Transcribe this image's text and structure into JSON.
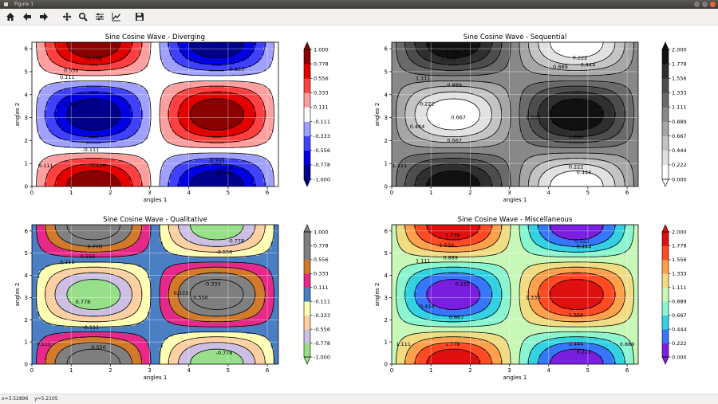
{
  "window": {
    "title": "Figure 1"
  },
  "toolbar": [
    {
      "name": "home-button",
      "icon": "home-icon"
    },
    {
      "name": "back-button",
      "icon": "arrow-left-icon"
    },
    {
      "name": "forward-button",
      "icon": "arrow-right-icon"
    },
    {
      "name": "pan-button",
      "icon": "move-icon"
    },
    {
      "name": "zoom-button",
      "icon": "magnifier-icon"
    },
    {
      "name": "subplots-button",
      "icon": "sliders-icon"
    },
    {
      "name": "axes-button",
      "icon": "chart-line-icon"
    },
    {
      "name": "save-button",
      "icon": "floppy-icon"
    }
  ],
  "status": {
    "x": "x=3.52896",
    "y": "y=5.2105"
  },
  "chart_data": [
    {
      "type": "contour",
      "title": "Sine Cosine Wave - Diverging",
      "xlabel": "angles 1",
      "ylabel": "angles 2",
      "function": "sin(x)*cos(y)",
      "xlim": [
        0,
        6.283
      ],
      "ylim": [
        0,
        6.283
      ],
      "xticks": [
        0,
        1,
        2,
        3,
        4,
        5,
        6
      ],
      "yticks": [
        0,
        1,
        2,
        3,
        4,
        5,
        6
      ],
      "levels": [
        -1.0,
        -0.778,
        -0.556,
        -0.333,
        -0.111,
        0.111,
        0.333,
        0.556,
        0.778,
        1.0
      ],
      "colorbar_labels": [
        "1.000",
        "0.778",
        "0.556",
        "0.333",
        "0.111",
        "-0.111",
        "-0.333",
        "-0.556",
        "-0.778",
        "-1.000"
      ],
      "colors": [
        "#00008b",
        "#0000ff",
        "#8080ff",
        "#ffffff",
        "#ff8080",
        "#ff0000",
        "#8b0000"
      ],
      "contour_labels": [
        "0.778",
        "0.556",
        "0.111",
        "-0.333",
        "-0.111",
        "0.333",
        "0.111",
        "0.556",
        "-0.333",
        "-0.556",
        "-0.778"
      ],
      "grid": true
    },
    {
      "type": "contour",
      "title": "Sine Cosine Wave - Sequential",
      "xlabel": "angles 1",
      "ylabel": "angles 2",
      "function": "sin(x)*cos(y)+1",
      "xlim": [
        0,
        6.283
      ],
      "ylim": [
        0,
        6.283
      ],
      "xticks": [
        0,
        1,
        2,
        3,
        4,
        5,
        6
      ],
      "yticks": [
        0,
        1,
        2,
        3,
        4,
        5,
        6
      ],
      "levels": [
        0,
        0.222,
        0.444,
        0.667,
        0.889,
        1.111,
        1.333,
        1.556,
        1.778,
        2.0
      ],
      "colorbar_labels": [
        "2.000",
        "1.778",
        "1.556",
        "1.333",
        "1.111",
        "0.889",
        "0.667",
        "0.444",
        "0.222",
        "0.000"
      ],
      "colors": [
        "#ffffff",
        "#111111"
      ],
      "contour_labels": [
        "1.778",
        "1.556",
        "0.889",
        "0.222",
        "0.444",
        "1.111",
        "0.667",
        "0.222",
        "0.444",
        "1.333",
        "1.556",
        "0.889",
        "0.667",
        "1.111",
        "0.222",
        "0.444"
      ],
      "grid": true
    },
    {
      "type": "contour",
      "title": "Sine Cosine Wave - Qualitative",
      "xlabel": "angles 1",
      "ylabel": "angles 2",
      "function": "sin(x)*cos(y)",
      "xlim": [
        0,
        6.283
      ],
      "ylim": [
        0,
        6.283
      ],
      "xticks": [
        0,
        1,
        2,
        3,
        4,
        5,
        6
      ],
      "yticks": [
        0,
        1,
        2,
        3,
        4,
        5,
        6
      ],
      "levels": [
        -1.0,
        -0.778,
        -0.556,
        -0.333,
        -0.111,
        0.111,
        0.333,
        0.556,
        0.778,
        1.0
      ],
      "colorbar_labels": [
        "1.000",
        "0.778",
        "0.556",
        "0.333",
        "0.111",
        "-0.111",
        "-0.333",
        "-0.556",
        "-0.778",
        "-1.000"
      ],
      "colors": [
        "#98df8a",
        "#cdbfe3",
        "#fdd0a2",
        "#ffffb3",
        "#4b7fc4",
        "#e7298a",
        "#d37a2a",
        "#808080",
        "#7f7f7f"
      ],
      "contour_labels": [
        "0.778",
        "-0.556",
        "-0.778",
        "0.111",
        "-0.556",
        "0.778",
        "-0.333",
        "0.333",
        "0.556",
        "-0.111",
        "0.111",
        "0.556",
        "-0.778"
      ],
      "grid": true
    },
    {
      "type": "contour",
      "title": "Sine Cosine Wave - Miscellaneous",
      "xlabel": "angles 1",
      "ylabel": "angles 2",
      "function": "sin(x)*cos(y)+1",
      "xlim": [
        0,
        6.283
      ],
      "ylim": [
        0,
        6.283
      ],
      "xticks": [
        0,
        1,
        2,
        3,
        4,
        5,
        6
      ],
      "yticks": [
        0,
        1,
        2,
        3,
        4,
        5,
        6
      ],
      "levels": [
        0,
        0.222,
        0.444,
        0.667,
        0.889,
        1.111,
        1.333,
        1.556,
        1.778,
        2.0
      ],
      "colorbar_labels": [
        "2.000",
        "1.778",
        "1.556",
        "1.333",
        "1.111",
        "0.889",
        "0.667",
        "0.444",
        "0.222",
        "0.000"
      ],
      "colors": [
        "#7a1fe0",
        "#3a6bff",
        "#1fc8e8",
        "#6ef0d0",
        "#b8ffd0",
        "#d8f0a0",
        "#ffd070",
        "#ff9040",
        "#ff4020",
        "#e01010"
      ],
      "contour_labels": [
        "1.778",
        "1.556",
        "0.222",
        "0.444",
        "0.889",
        "1.111",
        "0.222",
        "0.444",
        "1.333",
        "0.667",
        "1.556",
        "1.778",
        "0.444",
        "0.222",
        "1.111",
        "0.889"
      ],
      "grid": true
    }
  ]
}
